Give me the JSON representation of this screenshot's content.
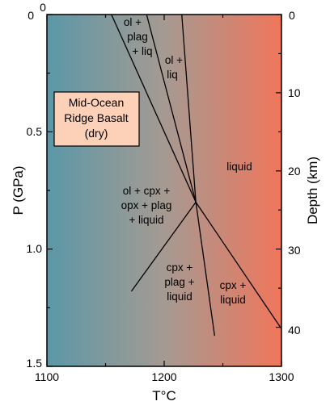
{
  "axes": {
    "bottom": {
      "title": "T°C",
      "range": [
        1100,
        1300
      ],
      "ticks": [
        "1100",
        "1200",
        "1300"
      ]
    },
    "left": {
      "title": "P (GPa)",
      "range": [
        0,
        1.5
      ],
      "ticks": [
        "0",
        "0.5",
        "1.0",
        "1.5"
      ]
    },
    "top": {
      "title": "",
      "ticks": [
        "0",
        "0"
      ]
    },
    "right": {
      "title": "Depth (km)",
      "range": [
        0,
        45
      ],
      "ticks": [
        "0",
        "10",
        "20",
        "30",
        "40"
      ]
    }
  },
  "background_gradient": {
    "left_color": "#5b98a8",
    "mid_color": "#a59a92",
    "right_color": "#f0765b"
  },
  "callout": {
    "lines": [
      "Mid-Ocean",
      "Ridge Basalt",
      "(dry)"
    ],
    "fill": "#fdd0b8"
  },
  "fields": [
    {
      "id": "ol-plag-liq",
      "lines": [
        "ol +",
        "plag",
        "+ liq"
      ]
    },
    {
      "id": "ol-liq",
      "lines": [
        "ol +",
        "liq"
      ]
    },
    {
      "id": "liquid",
      "lines": [
        "liquid"
      ]
    },
    {
      "id": "ol-cpx-opx-plag-liquid",
      "lines": [
        "ol + cpx +",
        "opx + plag",
        "+ liquid"
      ]
    },
    {
      "id": "cpx-plag-liquid",
      "lines": [
        "cpx +",
        "plag +",
        "liquid"
      ]
    },
    {
      "id": "cpx-liquid",
      "lines": [
        "cpx +",
        "liquid"
      ]
    }
  ],
  "phase_boundaries": [
    {
      "id": "plag-out",
      "points": [
        [
          1155,
          0
        ],
        [
          1227,
          0.8
        ]
      ]
    },
    {
      "id": "ol-plag-liq-boundary",
      "points": [
        [
          1185,
          0
        ],
        [
          1227,
          0.8
        ]
      ]
    },
    {
      "id": "ol-out",
      "points": [
        [
          1215,
          0
        ],
        [
          1227,
          0.8
        ]
      ]
    },
    {
      "id": "plag-out-high-p",
      "points": [
        [
          1227,
          0.8
        ],
        [
          1172,
          1.18
        ]
      ]
    },
    {
      "id": "liquidus-high-p",
      "points": [
        [
          1227,
          0.8
        ],
        [
          1300,
          1.34
        ]
      ]
    },
    {
      "id": "cpx-plag-boundary",
      "points": [
        [
          1227,
          0.8
        ],
        [
          1243,
          1.37
        ]
      ]
    }
  ]
}
